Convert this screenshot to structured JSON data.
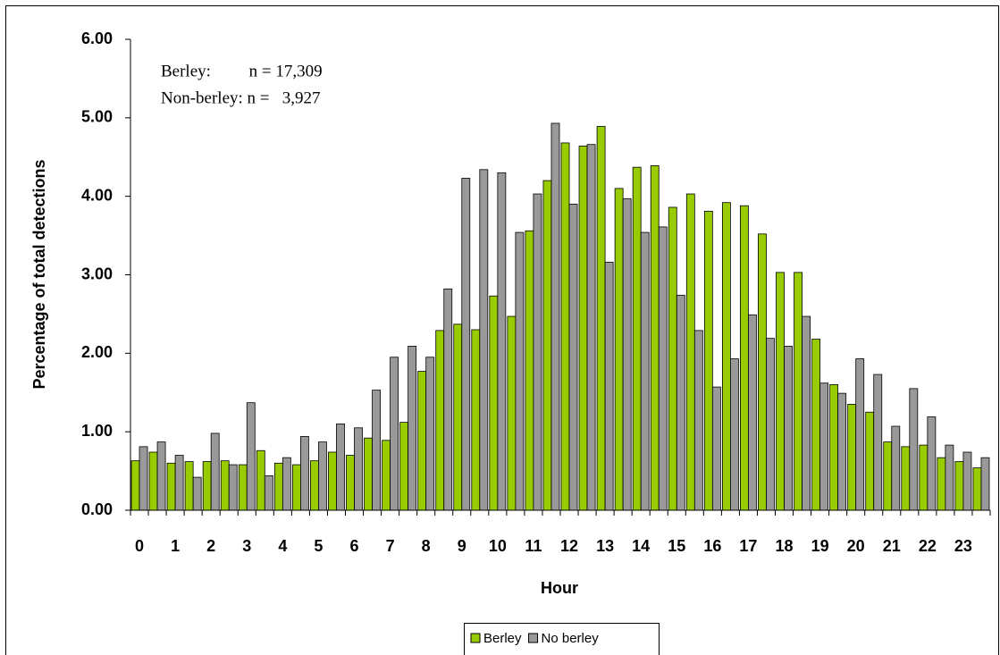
{
  "chart_data": {
    "type": "bar",
    "x_label": "Hour",
    "y_label": "Percentage of total detections",
    "annotations": [
      "Berley:         n = 17,309",
      "Non-berley: n =   3,927"
    ],
    "categories": [
      "0",
      null,
      "1",
      null,
      "2",
      null,
      "3",
      null,
      "4",
      null,
      "5",
      null,
      "6",
      null,
      "7",
      null,
      "8",
      null,
      "9",
      null,
      "10",
      null,
      "11",
      null,
      "12",
      null,
      "13",
      null,
      "14",
      null,
      "15",
      null,
      "16",
      null,
      "17",
      null,
      "18",
      null,
      "19",
      null,
      "20",
      null,
      "21",
      null,
      "22",
      null,
      "23",
      null
    ],
    "series": [
      {
        "name": "Berley",
        "color": "#99cc00",
        "values": [
          0.63,
          0.74,
          0.6,
          0.62,
          0.62,
          0.63,
          0.58,
          0.76,
          0.6,
          0.58,
          0.63,
          0.74,
          0.7,
          0.92,
          0.89,
          1.12,
          1.77,
          2.29,
          2.37,
          2.3,
          2.73,
          2.47,
          3.56,
          4.2,
          4.68,
          4.64,
          4.89,
          4.1,
          4.37,
          4.39,
          3.86,
          4.03,
          3.81,
          3.92,
          3.88,
          3.52,
          3.03,
          3.03,
          2.18,
          1.6,
          1.35,
          1.25,
          0.87,
          0.81,
          0.83,
          0.67,
          0.62,
          0.54
        ]
      },
      {
        "name": "No berley",
        "color": "#999999",
        "values": [
          0.81,
          0.87,
          0.7,
          0.42,
          0.98,
          0.58,
          1.37,
          0.44,
          0.67,
          0.94,
          0.87,
          1.1,
          1.05,
          1.53,
          1.95,
          2.09,
          1.95,
          2.82,
          4.23,
          4.34,
          4.3,
          3.54,
          4.03,
          4.93,
          3.9,
          4.66,
          3.16,
          3.97,
          3.54,
          3.61,
          2.74,
          2.29,
          1.57,
          1.93,
          2.49,
          2.19,
          2.09,
          2.47,
          1.62,
          1.49,
          1.93,
          1.73,
          1.07,
          1.55,
          1.19,
          0.83,
          0.74,
          0.67
        ]
      }
    ],
    "ylim": [
      0,
      6
    ],
    "yticks": [
      {
        "value": 0,
        "label": "0.00"
      },
      {
        "value": 1,
        "label": "1.00"
      },
      {
        "value": 2,
        "label": "2.00"
      },
      {
        "value": 3,
        "label": "3.00"
      },
      {
        "value": 4,
        "label": "4.00"
      },
      {
        "value": 5,
        "label": "5.00"
      },
      {
        "value": 6,
        "label": "6.00"
      }
    ],
    "grid": false,
    "legend": "bottom"
  }
}
